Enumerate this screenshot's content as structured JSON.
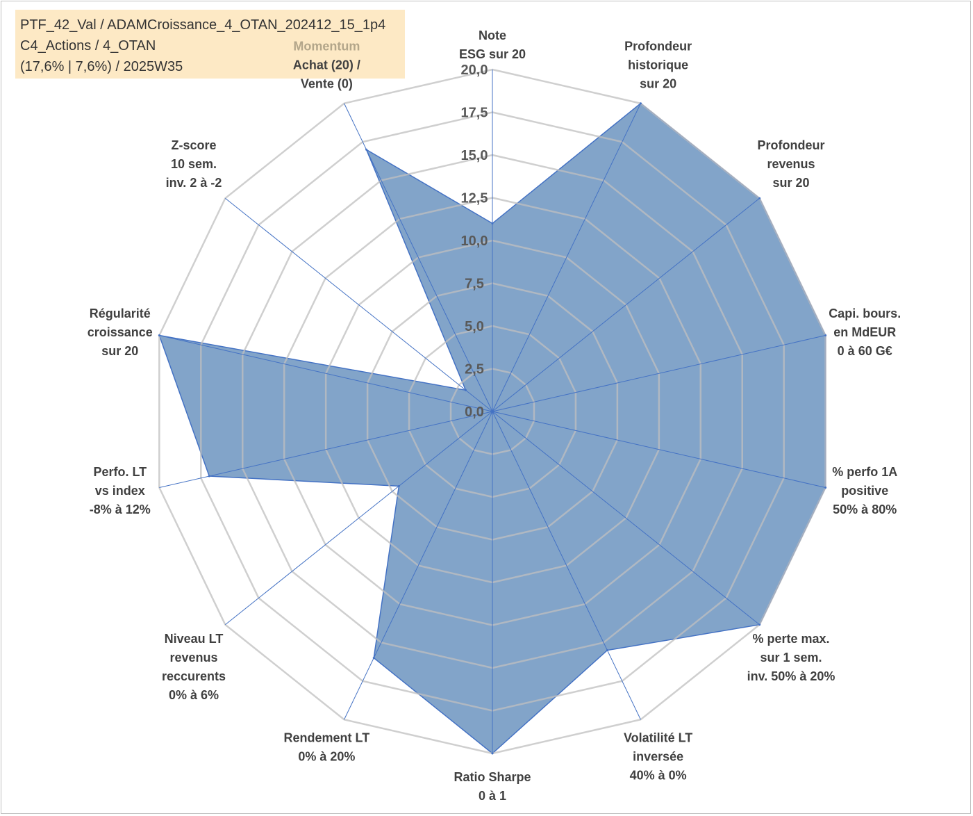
{
  "info_box": {
    "line1": "PTF_42_Val / ADAMCroissance_4_OTAN_202412_15_1p4",
    "line2": "C4_Actions / 4_OTAN",
    "line3": "(17,6% | 7,6%) / 2025W35"
  },
  "colors": {
    "grid": "#bfbfbf",
    "spoke": "#4472c4",
    "fill": "#7b9fc6",
    "stroke": "#4472c4",
    "momentum": "#b3a68a"
  },
  "chart_data": {
    "type": "radar",
    "r_range": [
      0,
      20
    ],
    "tick_labels": [
      "0,0",
      "2,5",
      "5,0",
      "7,5",
      "10,0",
      "12,5",
      "15,0",
      "17,5",
      "20,0"
    ],
    "axes": [
      {
        "lines": [
          "Note",
          "ESG sur 20"
        ]
      },
      {
        "lines": [
          "Profondeur",
          "historique",
          "sur 20"
        ]
      },
      {
        "lines": [
          "Profondeur",
          "revenus",
          "sur 20"
        ]
      },
      {
        "lines": [
          "Capi. bours.",
          "en MdEUR",
          "0 à 60 G€"
        ]
      },
      {
        "lines": [
          "% perfo 1A",
          "positive",
          "50% à 80%"
        ]
      },
      {
        "lines": [
          "% perte max.",
          "sur 1 sem.",
          "inv. 50% à 20%"
        ]
      },
      {
        "lines": [
          "Volatilité LT",
          "inversée",
          "40% à 0%"
        ]
      },
      {
        "lines": [
          "Ratio Sharpe",
          "0 à 1"
        ]
      },
      {
        "lines": [
          "Rendement LT",
          "0% à 20%"
        ]
      },
      {
        "lines": [
          "Niveau LT",
          "revenus",
          "reccurents",
          "0% à 6%"
        ]
      },
      {
        "lines": [
          "Perfo. LT",
          "vs index",
          "-8% à 12%"
        ]
      },
      {
        "lines": [
          "Régularité",
          "croissance",
          "sur 20"
        ]
      },
      {
        "lines": [
          "Z-score",
          "10 sem.",
          "inv. 2 à -2"
        ]
      },
      {
        "lines": [
          "Momentum",
          "Achat (20) /",
          "Vente (0)"
        ],
        "highlight_first_line": true
      }
    ],
    "values": [
      11.0,
      20.0,
      20.0,
      20.0,
      20.0,
      20.0,
      15.5,
      20.0,
      16.0,
      7.0,
      17.0,
      20.0,
      2.0,
      17.0
    ]
  }
}
